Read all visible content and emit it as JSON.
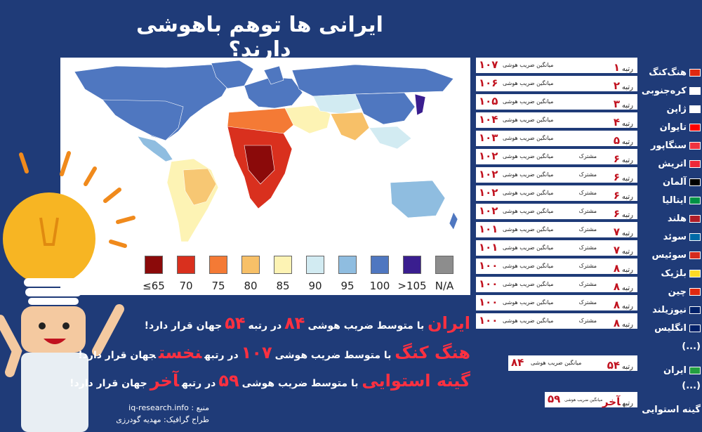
{
  "title": "ایرانی ها توهم باهوشی دارند؟",
  "legend": [
    {
      "label": "≤65",
      "color": "#8b0a0a"
    },
    {
      "label": "70",
      "color": "#d9301e"
    },
    {
      "label": "75",
      "color": "#f47a35"
    },
    {
      "label": "80",
      "color": "#f7c068"
    },
    {
      "label": "85",
      "color": "#fdf3b4"
    },
    {
      "label": "90",
      "color": "#d2ebf2"
    },
    {
      "label": "95",
      "color": "#8fbde0"
    },
    {
      "label": "100",
      "color": "#4f77c0"
    },
    {
      "label": ">105",
      "color": "#3a1e8f"
    },
    {
      "label": "N/A",
      "color": "#8d8d8d"
    }
  ],
  "rankings": [
    {
      "rank_word": "رتبه",
      "rank": "۱",
      "shared": "",
      "label": "میانگین ضریب هوشی",
      "iq": "۱۰۷",
      "country": "هنگ‌کنگ",
      "flag": "#de2910"
    },
    {
      "rank_word": "رتبه",
      "rank": "۲",
      "shared": "",
      "label": "میانگین ضریب هوشی",
      "iq": "۱۰۶",
      "country": "کره‌جنوبی",
      "flag": "#ffffff"
    },
    {
      "rank_word": "رتبه",
      "rank": "۳",
      "shared": "",
      "label": "میانگین ضریب هوشی",
      "iq": "۱۰۵",
      "country": "ژاپن",
      "flag": "#ffffff"
    },
    {
      "rank_word": "رتبه",
      "rank": "۴",
      "shared": "",
      "label": "میانگین ضریب هوشی",
      "iq": "۱۰۴",
      "country": "تایوان",
      "flag": "#fe0000"
    },
    {
      "rank_word": "رتبه",
      "rank": "۵",
      "shared": "",
      "label": "میانگین ضریب هوشی",
      "iq": "۱۰۳",
      "country": "سنگاپور",
      "flag": "#ef3340"
    },
    {
      "rank_word": "رتبه",
      "rank": "۶",
      "shared": "مشترک",
      "label": "میانگین ضریب هوشی",
      "iq": "۱۰۲",
      "country": "اتریش",
      "flag": "#ed2939"
    },
    {
      "rank_word": "رتبه",
      "rank": "۶",
      "shared": "مشترک",
      "label": "میانگین ضریب هوشی",
      "iq": "۱۰۲",
      "country": "آلمان",
      "flag": "#000000"
    },
    {
      "rank_word": "رتبه",
      "rank": "۶",
      "shared": "مشترک",
      "label": "میانگین ضریب هوشی",
      "iq": "۱۰۲",
      "country": "ایتالیا",
      "flag": "#009246"
    },
    {
      "rank_word": "رتبه",
      "rank": "۶",
      "shared": "مشترک",
      "label": "میانگین ضریب هوشی",
      "iq": "۱۰۲",
      "country": "هلند",
      "flag": "#ae1c28"
    },
    {
      "rank_word": "رتبه",
      "rank": "۷",
      "shared": "مشترک",
      "label": "میانگین ضریب هوشی",
      "iq": "۱۰۱",
      "country": "سوئد",
      "flag": "#006aa7"
    },
    {
      "rank_word": "رتبه",
      "rank": "۷",
      "shared": "مشترک",
      "label": "میانگین ضریب هوشی",
      "iq": "۱۰۱",
      "country": "سوئیس",
      "flag": "#d52b1e"
    },
    {
      "rank_word": "رتبه",
      "rank": "۸",
      "shared": "مشترک",
      "label": "میانگین ضریب هوشی",
      "iq": "۱۰۰",
      "country": "بلژیک",
      "flag": "#fdda24"
    },
    {
      "rank_word": "رتبه",
      "rank": "۸",
      "shared": "مشترک",
      "label": "میانگین ضریب هوشی",
      "iq": "۱۰۰",
      "country": "چین",
      "flag": "#de2910"
    },
    {
      "rank_word": "رتبه",
      "rank": "۸",
      "shared": "مشترک",
      "label": "میانگین ضریب هوشی",
      "iq": "۱۰۰",
      "country": "نیوزیلند",
      "flag": "#012169"
    },
    {
      "rank_word": "رتبه",
      "rank": "۸",
      "shared": "مشترک",
      "label": "میانگین ضریب هوشی",
      "iq": "۱۰۰",
      "country": "انگلیس",
      "flag": "#012169"
    }
  ],
  "ellipsis": "(...)",
  "iran_row": {
    "rank_word": "رتبه",
    "rank": "۵۴",
    "label": "میانگین ضریب هوشی",
    "iq": "۸۴",
    "country": "ایران",
    "flag": "#239f40"
  },
  "guinea_row": {
    "rank_word": "رتبه",
    "rank": "آخر",
    "label": "میانگین ضریب هوشی",
    "iq": "۵۹",
    "country": "گینه استوایی"
  },
  "sentences": [
    {
      "subject": "ایران",
      "mid": "با متوسط ضریب هوشی",
      "iq": "۸۴",
      "mid2": "در رتبه",
      "rank": "۵۴",
      "end": "جهان قرار دارد!"
    },
    {
      "subject": "هنگ کنگ",
      "mid": "با متوسط ضریب هوشی",
      "iq": "۱۰۷",
      "mid2": "در رتبه",
      "rank": "نخست",
      "end": "جهان قرار دارد!"
    },
    {
      "subject": "گینه استوایی",
      "mid": "با متوسط ضریب هوشی",
      "iq": "۵۹",
      "mid2": "در رتبه",
      "rank": "آخر",
      "end": "جهان قرار دارد!"
    }
  ],
  "source": {
    "label": "منبع :",
    "value": "iq-research.info",
    "designer": "طراح گرافیک: مهدیه گودرزی"
  }
}
